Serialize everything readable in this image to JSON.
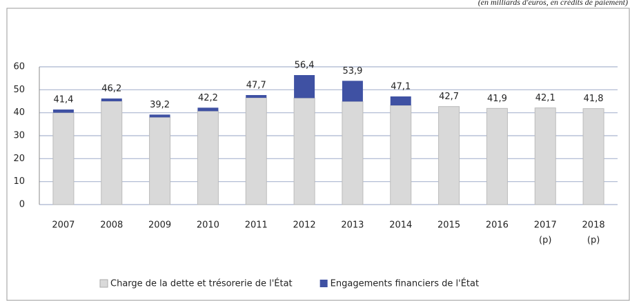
{
  "chart_data": {
    "type": "stacked_bar",
    "subtitle": "(en milliards d'euros, en crédits de paiement)",
    "categories": [
      [
        "2007"
      ],
      [
        "2008"
      ],
      [
        "2009"
      ],
      [
        "2010"
      ],
      [
        "2011"
      ],
      [
        "2012"
      ],
      [
        "2013"
      ],
      [
        "2014"
      ],
      [
        "2015"
      ],
      [
        "2016"
      ],
      [
        "2017",
        "(p)"
      ],
      [
        "2018",
        "(p)"
      ]
    ],
    "series": [
      {
        "name": "Charge de la dette et trésorerie de l'État",
        "color": "#d9d9d9",
        "values": [
          40.0,
          45.0,
          38.0,
          40.7,
          46.5,
          46.4,
          44.9,
          43.2,
          42.7,
          41.9,
          42.1,
          41.8
        ]
      },
      {
        "name": "Engagements financiers de l'État",
        "color": "#3f51a3",
        "values": [
          1.4,
          1.2,
          1.2,
          1.5,
          1.2,
          10.0,
          9.0,
          3.9,
          0,
          0,
          0,
          0
        ]
      }
    ],
    "totals": [
      41.4,
      46.2,
      39.2,
      42.2,
      47.7,
      56.4,
      53.9,
      47.1,
      42.7,
      41.9,
      42.1,
      41.8
    ],
    "total_labels": [
      "41,4",
      "46,2",
      "39,2",
      "42,2",
      "47,7",
      "56,4",
      "53,9",
      "47,1",
      "42,7",
      "41,9",
      "42,1",
      "41,8"
    ],
    "ylim": [
      0,
      60
    ],
    "yticks": [
      0,
      10,
      20,
      30,
      40,
      50,
      60
    ],
    "grid": true,
    "legend": "bottom"
  }
}
